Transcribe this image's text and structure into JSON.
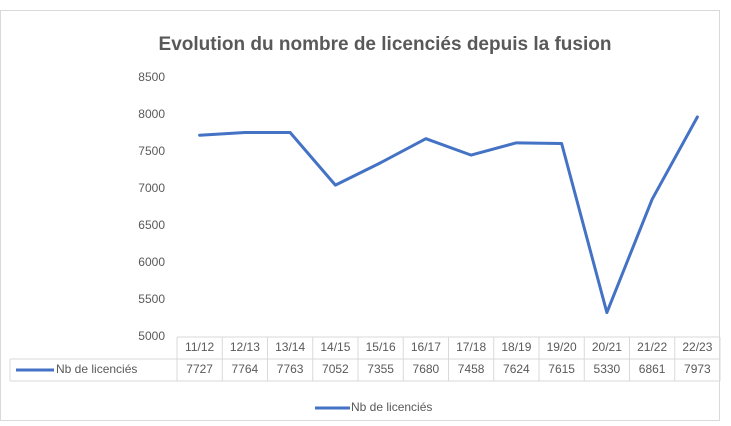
{
  "chart_data": {
    "type": "line",
    "title": "Evolution du nombre de licenciés depuis la fusion",
    "categories": [
      "11/12",
      "12/13",
      "13/14",
      "14/15",
      "15/16",
      "16/17",
      "17/18",
      "18/19",
      "19/20",
      "20/21",
      "21/22",
      "22/23"
    ],
    "series": [
      {
        "name": "Nb de licenciés",
        "color": "#4472c4",
        "values": [
          7727,
          7764,
          7763,
          7052,
          7355,
          7680,
          7458,
          7624,
          7615,
          5330,
          6861,
          7973
        ]
      }
    ],
    "ylim": [
      5000,
      8500
    ],
    "yticks": [
      5000,
      5500,
      6000,
      6500,
      7000,
      7500,
      8000,
      8500
    ],
    "grid": false,
    "legend": "bottom"
  }
}
